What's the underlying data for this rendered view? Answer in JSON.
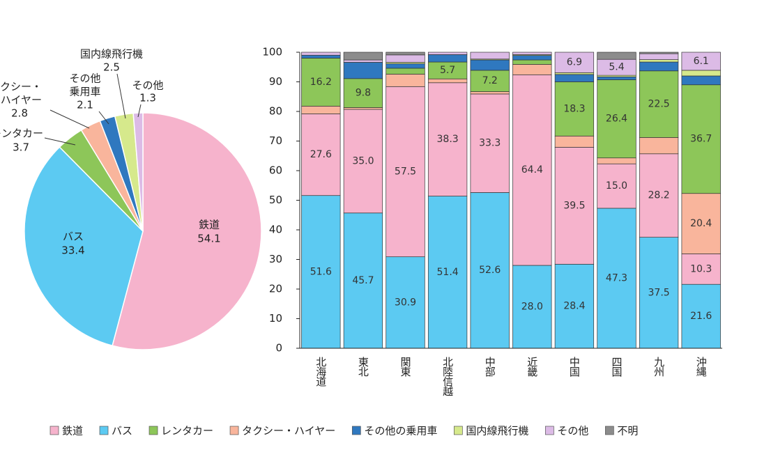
{
  "chart_data": [
    {
      "type": "pie",
      "labels": [
        [
          "鉄道"
        ],
        [
          "バス"
        ],
        [
          "レンタカー"
        ],
        [
          "タクシー・",
          "ハイヤー"
        ],
        [
          "その他",
          "乗用車"
        ],
        [
          "国内線飛行機"
        ],
        [
          "その他"
        ]
      ],
      "values": [
        54.1,
        33.4,
        3.7,
        2.8,
        2.1,
        2.5,
        1.3
      ],
      "colors": [
        "#f6b3cc",
        "#5ccaf2",
        "#8dc659",
        "#f9b59c",
        "#2f78bf",
        "#d6e98c",
        "#dcbbe6"
      ]
    },
    {
      "type": "bar",
      "stacked": true,
      "categories": [
        "北海道",
        "東北",
        "関東",
        "北陸信越",
        "中部",
        "近畿",
        "中国",
        "四国",
        "九州",
        "沖縄"
      ],
      "stack_order": [
        1,
        0,
        3,
        2,
        4,
        5,
        6,
        7
      ],
      "series": [
        {
          "name": "鉄道",
          "color": "#f6b3cc",
          "values": [
            27.6,
            35.0,
            57.5,
            38.3,
            33.3,
            64.4,
            39.5,
            15.0,
            28.2,
            10.3
          ],
          "value_labels": [
            "27.6",
            "35.0",
            "57.5",
            "38.3",
            "33.3",
            "64.4",
            "39.5",
            "15.0",
            "28.2",
            "10.3"
          ]
        },
        {
          "name": "バス",
          "color": "#5ccaf2",
          "values": [
            51.6,
            45.7,
            30.9,
            51.4,
            52.6,
            28.0,
            28.4,
            47.3,
            37.5,
            21.6
          ],
          "value_labels": [
            "51.6",
            "45.7",
            "30.9",
            "51.4",
            "52.6",
            "28.0",
            "28.4",
            "47.3",
            "37.5",
            "21.6"
          ]
        },
        {
          "name": "レンタカー",
          "color": "#8dc659",
          "values": [
            16.2,
            9.8,
            2.0,
            5.7,
            7.2,
            1.5,
            18.3,
            26.4,
            22.5,
            36.7
          ],
          "value_labels": [
            "16.2",
            "9.8",
            null,
            "5.7",
            "7.2",
            null,
            "18.3",
            "26.4",
            "22.5",
            "36.7"
          ]
        },
        {
          "name": "タクシー・ハイヤー",
          "color": "#f9b59c",
          "values": [
            2.6,
            0.6,
            4.2,
            1.3,
            0.8,
            3.5,
            3.8,
            2.0,
            5.5,
            20.4
          ],
          "value_labels": [
            null,
            null,
            null,
            null,
            null,
            null,
            null,
            null,
            null,
            "20.4"
          ]
        },
        {
          "name": "その他の乗用車",
          "color": "#2f78bf",
          "values": [
            1.0,
            5.5,
            1.5,
            2.5,
            3.5,
            1.5,
            2.5,
            1.0,
            3.0,
            3.0
          ]
        },
        {
          "name": "国内線飛行機",
          "color": "#d6e98c",
          "values": [
            0,
            0,
            0.5,
            0,
            0.3,
            0.3,
            0.6,
            0.5,
            0.8,
            1.9
          ]
        },
        {
          "name": "その他",
          "color": "#dcbbe6",
          "values": [
            1.0,
            0.8,
            2.5,
            0.8,
            2.3,
            0.8,
            6.9,
            5.4,
            2.0,
            6.1
          ],
          "value_labels": [
            null,
            null,
            null,
            null,
            null,
            null,
            "6.9",
            "5.4",
            null,
            "6.1"
          ]
        },
        {
          "name": "不明",
          "color": "#8c8c8c",
          "values": [
            0,
            2.6,
            0.9,
            0,
            0,
            0,
            0,
            2.4,
            0.5,
            0
          ]
        }
      ],
      "ylim": [
        0,
        100
      ],
      "yticks": [
        0,
        10,
        20,
        30,
        40,
        50,
        60,
        70,
        80,
        90,
        100
      ]
    }
  ]
}
